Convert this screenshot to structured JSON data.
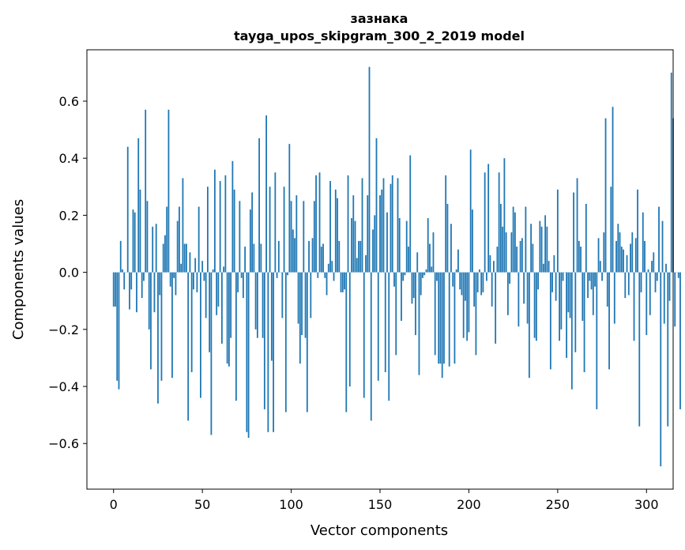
{
  "chart_data": {
    "type": "bar",
    "title_line1": "зазнака",
    "title_line2": "tayga_upos_skipgram_300_2_2019 model",
    "xlabel": "Vector components",
    "ylabel": "Components values",
    "xlim": [
      -15,
      315
    ],
    "ylim": [
      -0.76,
      0.78
    ],
    "xticks": [
      0,
      50,
      100,
      150,
      200,
      250,
      300
    ],
    "xtick_labels": [
      "0",
      "50",
      "100",
      "150",
      "200",
      "250",
      "300"
    ],
    "yticks": [
      -0.6,
      -0.4,
      -0.2,
      0.0,
      0.2,
      0.4,
      0.6
    ],
    "ytick_labels": [
      "−0.6",
      "−0.4",
      "−0.2",
      "0.0",
      "0.2",
      "0.4",
      "0.6"
    ],
    "bar_color": "#1f77b4",
    "values": [
      -0.12,
      -0.12,
      -0.38,
      -0.41,
      0.11,
      0.01,
      -0.06,
      0.0,
      0.44,
      -0.13,
      -0.06,
      0.22,
      0.21,
      -0.14,
      0.47,
      0.29,
      -0.09,
      -0.03,
      0.57,
      0.25,
      -0.2,
      -0.34,
      0.16,
      -0.14,
      0.17,
      -0.46,
      -0.08,
      -0.38,
      0.1,
      0.13,
      0.23,
      0.57,
      -0.05,
      -0.37,
      -0.02,
      -0.08,
      0.18,
      0.23,
      0.03,
      0.33,
      0.1,
      0.1,
      -0.52,
      0.07,
      -0.35,
      -0.06,
      0.05,
      -0.07,
      0.23,
      -0.44,
      0.04,
      -0.03,
      -0.16,
      0.3,
      -0.28,
      -0.57,
      0.01,
      0.36,
      -0.15,
      -0.12,
      0.32,
      -0.25,
      0.02,
      0.34,
      -0.32,
      -0.33,
      -0.23,
      0.39,
      0.29,
      -0.45,
      -0.07,
      0.25,
      -0.02,
      -0.09,
      0.09,
      -0.56,
      -0.58,
      0.22,
      0.28,
      0.1,
      -0.2,
      -0.23,
      0.47,
      0.1,
      -0.23,
      -0.48,
      0.55,
      -0.56,
      0.3,
      -0.31,
      -0.56,
      0.35,
      -0.02,
      0.11,
      0.0,
      -0.16,
      0.3,
      -0.49,
      -0.01,
      0.45,
      0.25,
      0.15,
      0.12,
      0.27,
      -0.18,
      -0.32,
      -0.22,
      0.25,
      -0.23,
      -0.49,
      0.11,
      -0.16,
      0.12,
      0.25,
      0.34,
      -0.02,
      0.35,
      0.09,
      0.1,
      -0.02,
      -0.08,
      0.03,
      0.32,
      0.04,
      -0.03,
      0.29,
      0.26,
      0.11,
      -0.07,
      -0.07,
      -0.06,
      -0.49,
      0.34,
      -0.4,
      0.19,
      0.27,
      0.18,
      0.05,
      0.11,
      0.11,
      0.33,
      -0.44,
      0.06,
      0.27,
      0.72,
      -0.52,
      0.15,
      0.2,
      0.47,
      -0.38,
      0.27,
      0.29,
      0.33,
      -0.35,
      0.21,
      -0.45,
      0.31,
      0.34,
      -0.05,
      -0.29,
      0.33,
      0.19,
      -0.17,
      -0.03,
      -0.01,
      0.18,
      0.09,
      0.41,
      -0.11,
      -0.09,
      -0.22,
      0.07,
      -0.36,
      -0.08,
      -0.02,
      -0.01,
      0.01,
      0.19,
      0.1,
      0.02,
      0.14,
      -0.29,
      -0.03,
      -0.32,
      -0.32,
      -0.37,
      -0.32,
      0.34,
      0.24,
      -0.33,
      0.17,
      -0.05,
      -0.32,
      0.01,
      0.08,
      -0.06,
      -0.08,
      -0.23,
      -0.1,
      -0.24,
      -0.21,
      0.43,
      0.22,
      -0.12,
      -0.29,
      -0.07,
      0.01,
      -0.08,
      -0.07,
      0.35,
      -0.03,
      0.38,
      0.06,
      -0.12,
      0.04,
      -0.25,
      0.09,
      0.35,
      0.24,
      0.16,
      0.4,
      0.14,
      -0.15,
      -0.04,
      0.14,
      0.23,
      0.21,
      0.09,
      -0.19,
      0.11,
      0.12,
      -0.11,
      0.23,
      -0.18,
      -0.37,
      0.17,
      0.1,
      -0.23,
      -0.24,
      -0.06,
      0.18,
      0.16,
      0.03,
      0.2,
      0.16,
      0.04,
      -0.34,
      -0.07,
      0.06,
      -0.1,
      0.29,
      -0.24,
      -0.2,
      -0.03,
      0.0,
      -0.3,
      -0.14,
      -0.16,
      -0.41,
      0.28,
      -0.28,
      0.33,
      0.11,
      0.09,
      -0.17,
      -0.35,
      0.24,
      -0.09,
      -0.03,
      -0.06,
      -0.15,
      -0.05,
      -0.48,
      0.12,
      0.04,
      -0.03,
      0.14,
      0.54,
      -0.12,
      -0.34,
      0.3,
      0.58,
      -0.18,
      0.11,
      0.17,
      0.14,
      0.09,
      0.08,
      -0.09,
      0.06,
      -0.08,
      0.1,
      0.14,
      -0.24,
      0.12,
      0.29,
      -0.54,
      -0.07,
      0.21,
      0.11,
      -0.22,
      0.01,
      -0.15,
      0.04,
      0.07,
      -0.07,
      -0.03,
      0.23,
      -0.68,
      0.18,
      -0.18,
      0.03,
      -0.54,
      -0.1,
      0.7,
      0.54,
      -0.19,
      0.0,
      -0.02,
      -0.48
    ]
  }
}
